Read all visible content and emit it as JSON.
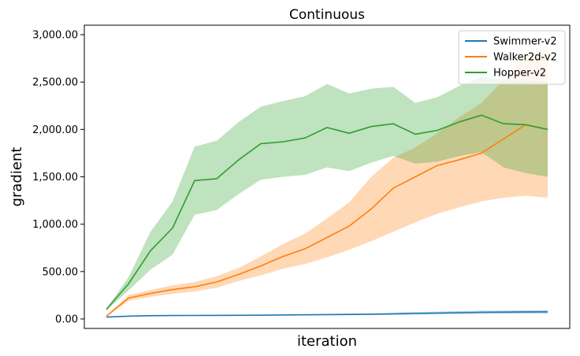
{
  "chart_data": {
    "type": "line",
    "title": "Continuous",
    "xlabel": "iteration",
    "ylabel": "gradient",
    "ylim": [
      -100,
      3100
    ],
    "yticks": [
      0,
      500,
      1000,
      1500,
      2000,
      2500,
      3000
    ],
    "ytick_labels": [
      "0.00",
      "500.00",
      "1,000.00",
      "1,500.00",
      "2,000.00",
      "2,500.00",
      "3,000.00"
    ],
    "xlim": [
      -5,
      105
    ],
    "show_x_ticks": false,
    "grid": false,
    "legend_position": "top-right",
    "x": [
      0,
      5,
      10,
      15,
      20,
      25,
      30,
      35,
      40,
      45,
      50,
      55,
      60,
      65,
      70,
      75,
      80,
      85,
      90,
      95,
      100
    ],
    "series": [
      {
        "name": "Swimmer-v2",
        "color": "#1f77b4",
        "values": [
          20,
          30,
          35,
          36,
          37,
          38,
          39,
          40,
          42,
          44,
          46,
          48,
          50,
          54,
          58,
          62,
          66,
          70,
          72,
          74,
          75
        ],
        "lower": [
          18,
          27,
          31,
          32,
          33,
          34,
          35,
          36,
          37,
          38,
          39,
          40,
          41,
          44,
          47,
          50,
          52,
          54,
          55,
          56,
          57
        ],
        "upper": [
          22,
          33,
          39,
          40,
          41,
          42,
          43,
          44,
          47,
          50,
          53,
          56,
          60,
          66,
          72,
          78,
          83,
          87,
          89,
          91,
          92
        ]
      },
      {
        "name": "Walker2d-v2",
        "color": "#ff7f0e",
        "values": [
          30,
          220,
          270,
          310,
          340,
          390,
          470,
          560,
          660,
          740,
          860,
          980,
          1160,
          1380,
          1500,
          1620,
          1680,
          1750,
          1900,
          2050,
          2000
        ],
        "lower": [
          25,
          190,
          235,
          265,
          290,
          330,
          400,
          460,
          530,
          580,
          650,
          730,
          820,
          920,
          1020,
          1110,
          1180,
          1240,
          1280,
          1300,
          1280
        ],
        "upper": [
          35,
          250,
          305,
          355,
          390,
          450,
          540,
          660,
          790,
          900,
          1060,
          1230,
          1500,
          1700,
          1810,
          1960,
          2130,
          2280,
          2520,
          2780,
          2850
        ]
      },
      {
        "name": "Hopper-v2",
        "color": "#2ca02c",
        "values": [
          100,
          370,
          720,
          960,
          1460,
          1480,
          1680,
          1850,
          1870,
          1910,
          2020,
          1960,
          2030,
          2060,
          1950,
          1990,
          2080,
          2150,
          2060,
          2050,
          2000
        ],
        "lower": [
          90,
          300,
          520,
          680,
          1100,
          1150,
          1320,
          1470,
          1500,
          1520,
          1600,
          1560,
          1650,
          1720,
          1640,
          1660,
          1720,
          1760,
          1600,
          1540,
          1500
        ],
        "upper": [
          110,
          440,
          920,
          1240,
          1820,
          1880,
          2080,
          2240,
          2300,
          2350,
          2480,
          2380,
          2430,
          2450,
          2280,
          2340,
          2460,
          2560,
          2520,
          2520,
          2500
        ]
      }
    ]
  }
}
